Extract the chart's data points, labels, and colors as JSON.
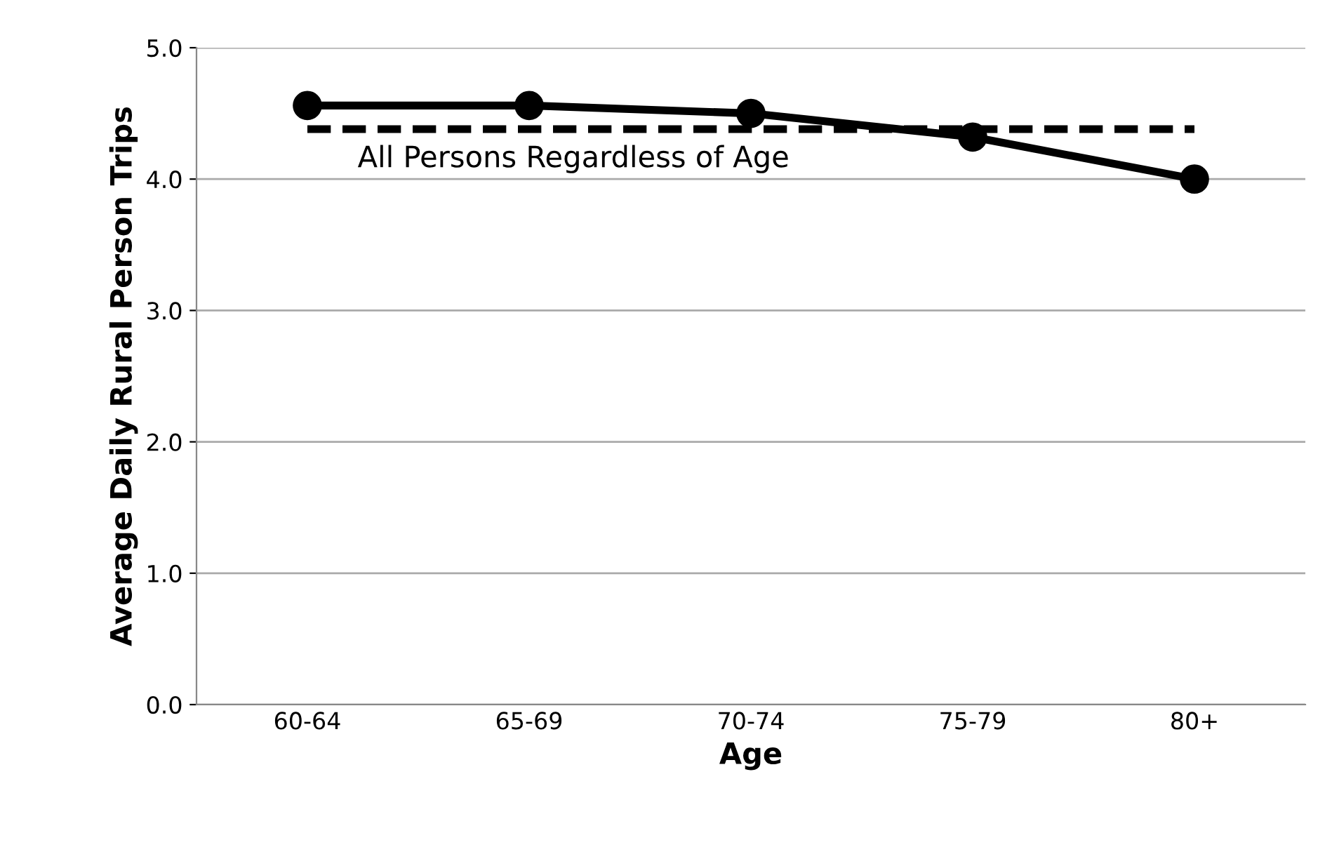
{
  "chart_data": {
    "type": "line",
    "xlabel": "Age",
    "ylabel": "Average Daily Rural Person Trips",
    "categories": [
      "60-64",
      "65-69",
      "70-74",
      "75-79",
      "80+"
    ],
    "series": [
      {
        "color": "#000000",
        "values": [
          4.56,
          4.56,
          4.5,
          4.32,
          4.0
        ],
        "marker": "circle",
        "line_style": "solid"
      },
      {
        "name": "All Persons Regardless of Age",
        "color": "#000000",
        "values": [
          4.38,
          4.38,
          4.38,
          4.38,
          4.38
        ],
        "marker": "none",
        "line_style": "dashed"
      }
    ],
    "ylim": [
      0,
      5
    ],
    "yticks": [
      {
        "value": 0,
        "label": "0.0"
      },
      {
        "value": 1,
        "label": "1.0"
      },
      {
        "value": 2,
        "label": "2.0"
      },
      {
        "value": 3,
        "label": "3.0"
      },
      {
        "value": 4,
        "label": "4.0"
      },
      {
        "value": 5,
        "label": "5.0"
      }
    ],
    "grid": "y",
    "legend": false
  }
}
